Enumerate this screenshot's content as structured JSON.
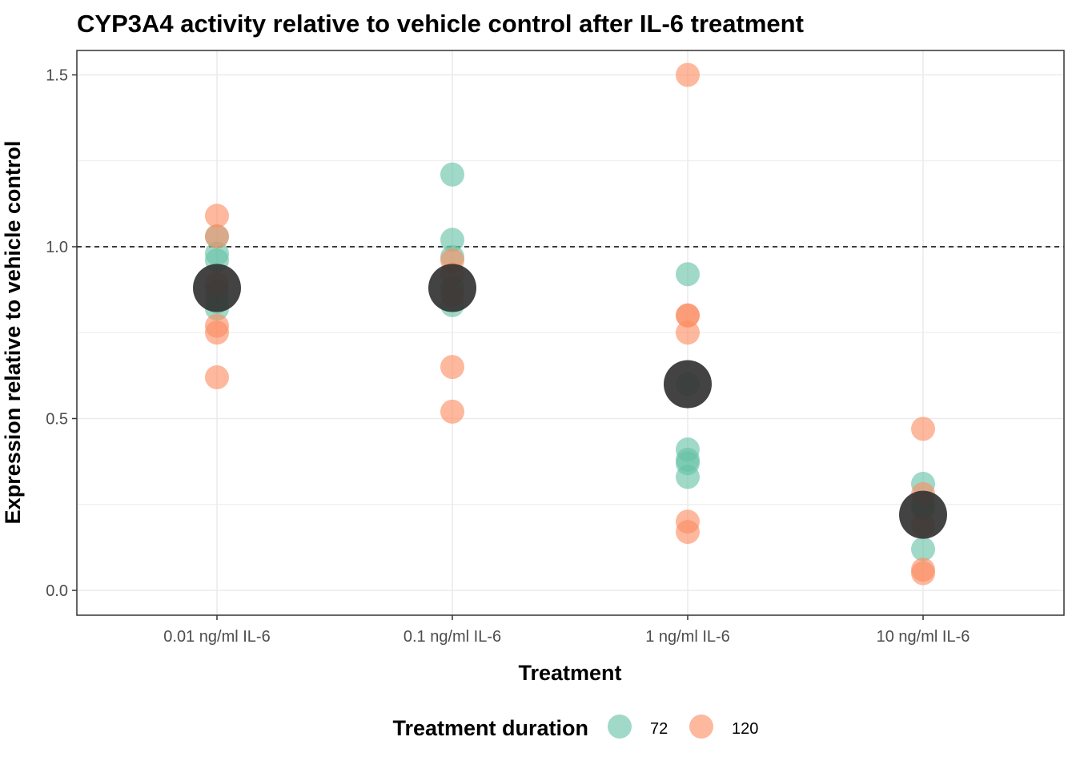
{
  "chart_data": {
    "type": "scatter",
    "title": "CYP3A4 activity relative to vehicle control after IL-6 treatment",
    "xlabel": "Treatment",
    "ylabel": "Expression relative to vehicle control",
    "categories": [
      "0.01 ng/ml IL-6",
      "0.1 ng/ml IL-6",
      "1 ng/ml IL-6",
      "10 ng/ml IL-6"
    ],
    "ylim": [
      -0.07,
      1.57
    ],
    "yticks": [
      0.0,
      0.5,
      1.0,
      1.5
    ],
    "ytick_labels": [
      "0.0",
      "0.5",
      "1.0",
      "1.5"
    ],
    "reference_line": 1.0,
    "grid": true,
    "legend": {
      "title": "Treatment duration",
      "position": "bottom",
      "entries": [
        {
          "label": "72",
          "color": "#66c2a5"
        },
        {
          "label": "120",
          "color": "#fc8d62"
        }
      ]
    },
    "series": [
      {
        "name": "72",
        "color": "#66c2a5",
        "points": [
          [
            0,
            1.03
          ],
          [
            0,
            0.98
          ],
          [
            0,
            0.96
          ],
          [
            0,
            0.87
          ],
          [
            0,
            0.84
          ],
          [
            0,
            0.82
          ],
          [
            1,
            1.21
          ],
          [
            1,
            1.02
          ],
          [
            1,
            0.97
          ],
          [
            1,
            0.88
          ],
          [
            1,
            0.83
          ],
          [
            2,
            0.92
          ],
          [
            2,
            0.6
          ],
          [
            2,
            0.41
          ],
          [
            2,
            0.38
          ],
          [
            2,
            0.37
          ],
          [
            2,
            0.33
          ],
          [
            3,
            0.31
          ],
          [
            3,
            0.25
          ],
          [
            3,
            0.24
          ],
          [
            3,
            0.12
          ]
        ]
      },
      {
        "name": "120",
        "color": "#fc8d62",
        "points": [
          [
            0,
            1.09
          ],
          [
            0,
            1.03
          ],
          [
            0,
            0.89
          ],
          [
            0,
            0.77
          ],
          [
            0,
            0.75
          ],
          [
            0,
            0.62
          ],
          [
            1,
            0.96
          ],
          [
            1,
            0.92
          ],
          [
            1,
            0.86
          ],
          [
            1,
            0.65
          ],
          [
            1,
            0.52
          ],
          [
            2,
            1.5
          ],
          [
            2,
            0.8
          ],
          [
            2,
            0.8
          ],
          [
            2,
            0.75
          ],
          [
            2,
            0.2
          ],
          [
            2,
            0.17
          ],
          [
            3,
            0.47
          ],
          [
            3,
            0.28
          ],
          [
            3,
            0.19
          ],
          [
            3,
            0.06
          ],
          [
            3,
            0.05
          ]
        ]
      }
    ],
    "means": {
      "color": "#333333",
      "values": [
        0.88,
        0.88,
        0.6,
        0.22
      ]
    }
  }
}
